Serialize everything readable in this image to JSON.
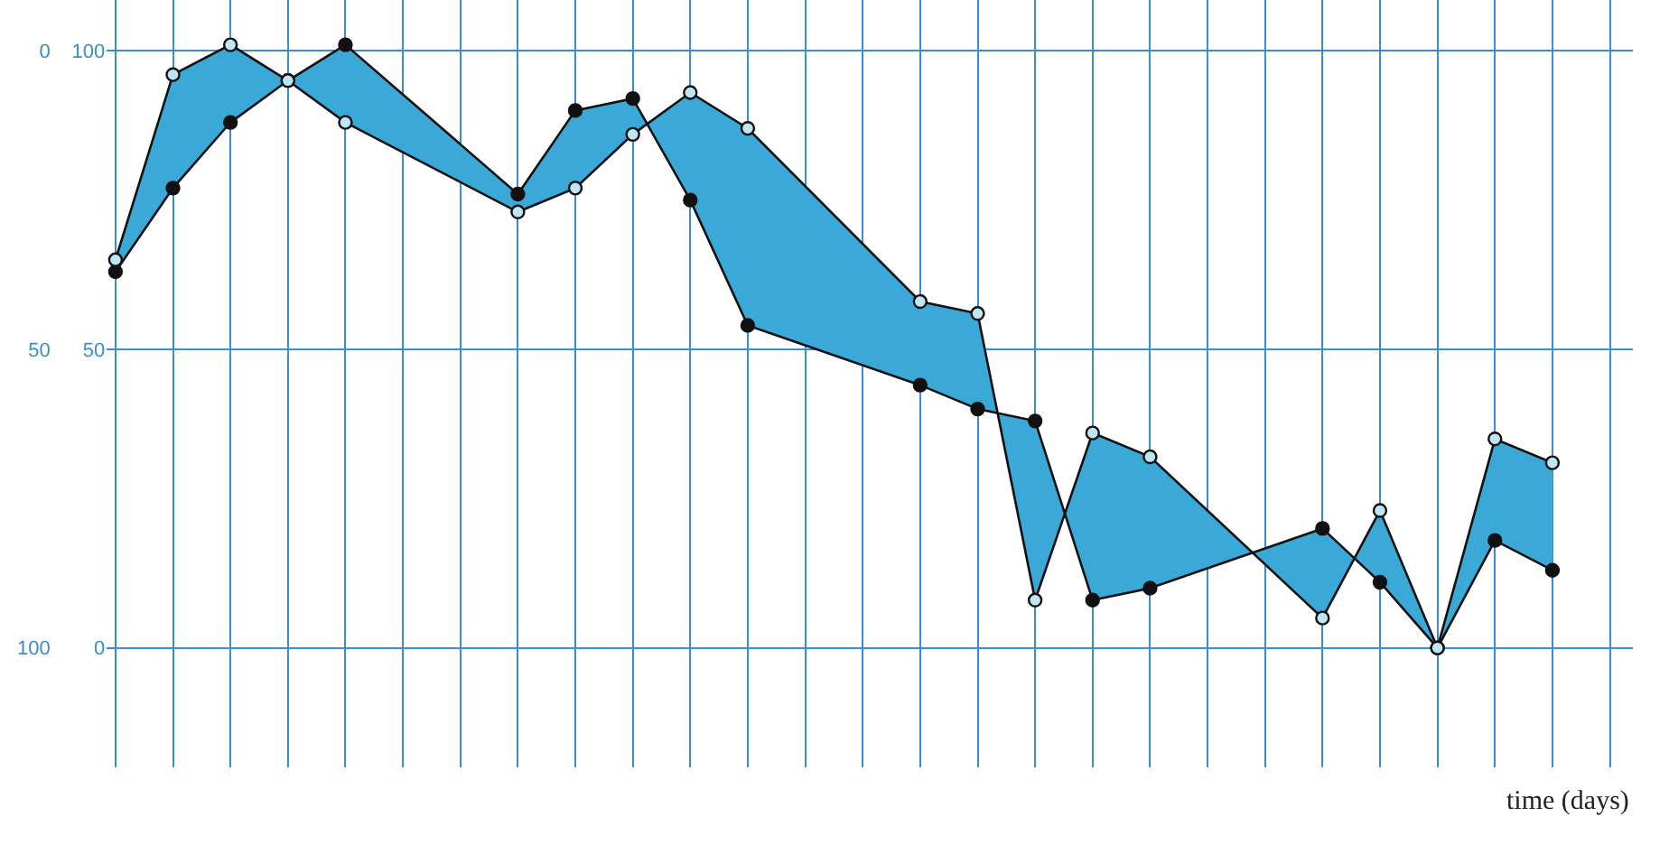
{
  "chart_data": {
    "type": "line",
    "xlabel": "time (days)",
    "categories": [
      null,
      null,
      null,
      null,
      null,
      null,
      null,
      null,
      null,
      null,
      null,
      null,
      null,
      null,
      null,
      null,
      null,
      null,
      null,
      null,
      null,
      null,
      null,
      null,
      null,
      null
    ],
    "series": [
      {
        "color": "#111111",
        "values": [
          63,
          77,
          88,
          95,
          101,
          null,
          null,
          76,
          90,
          92,
          75,
          54,
          null,
          null,
          44,
          40,
          38,
          8,
          10,
          null,
          null,
          20,
          11,
          0,
          18,
          13
        ]
      },
      {
        "color": "#111111",
        "values": [
          65,
          96,
          101,
          95,
          88,
          null,
          null,
          73,
          77,
          86,
          93,
          87,
          null,
          null,
          58,
          56,
          8,
          36,
          32,
          null,
          null,
          5,
          23,
          0,
          35,
          31
        ]
      }
    ],
    "ylim": [
      -20,
      108.5
    ],
    "yticks": [
      0,
      50,
      100
    ],
    "y2lim": [
      120,
      -8.5
    ],
    "y2ticks": [
      0,
      50,
      100
    ],
    "grid": true,
    "marker": "circle",
    "line_style": "solid"
  }
}
